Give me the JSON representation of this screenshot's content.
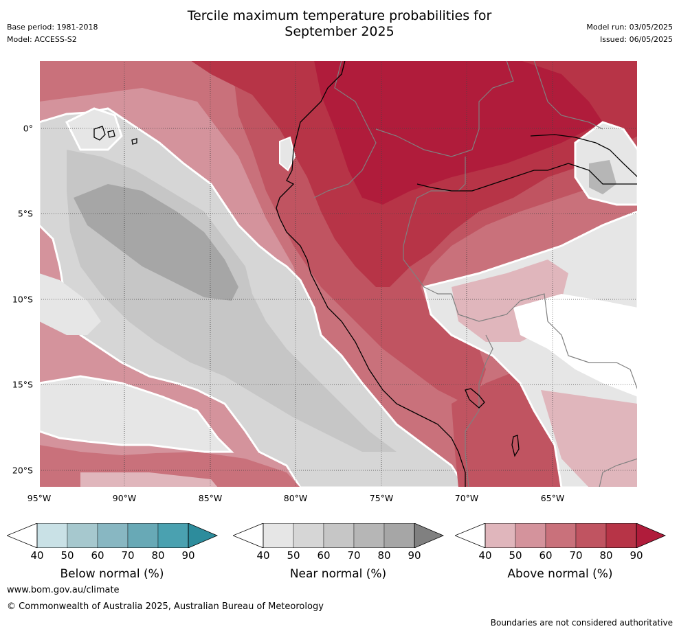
{
  "header": {
    "title_line1": "Tercile maximum temperature probabilities for",
    "title_line2": "September 2025",
    "base_period": "Base period: 1981-2018",
    "model": "Model: ACCESS-S2",
    "model_run": "Model run: 03/05/2025",
    "issued": "Issued: 06/05/2025"
  },
  "map": {
    "longitude_ticks": [
      "95°W",
      "90°W",
      "85°W",
      "80°W",
      "75°W",
      "70°W",
      "65°W"
    ],
    "latitude_ticks": [
      "0°",
      "5°S",
      "10°S",
      "15°S",
      "20°S"
    ],
    "colors": {
      "below": [
        "#c9e1e6",
        "#a6c8ce",
        "#88b7c2",
        "#68a9b6",
        "#4aa1b0",
        "#2d8c9c"
      ],
      "near": [
        "#e6e6e6",
        "#d6d6d6",
        "#c6c6c6",
        "#b6b6b6",
        "#a6a6a6",
        "#808080"
      ],
      "above": [
        "#e0b6bc",
        "#d4939c",
        "#c9717b",
        "#c05461",
        "#b73447",
        "#b01c3b"
      ]
    }
  },
  "colorbars": [
    {
      "label": "Below normal (%)",
      "ticks": [
        "40",
        "50",
        "60",
        "70",
        "80",
        "90"
      ]
    },
    {
      "label": "Near normal (%)",
      "ticks": [
        "40",
        "50",
        "60",
        "70",
        "80",
        "90"
      ]
    },
    {
      "label": "Above normal (%)",
      "ticks": [
        "40",
        "50",
        "60",
        "70",
        "80",
        "90"
      ]
    }
  ],
  "footer": {
    "url": "www.bom.gov.au/climate",
    "copyright": "© Commonwealth of Australia 2025, Australian Bureau of Meteorology",
    "disclaimer": "Boundaries are not considered authoritative"
  }
}
